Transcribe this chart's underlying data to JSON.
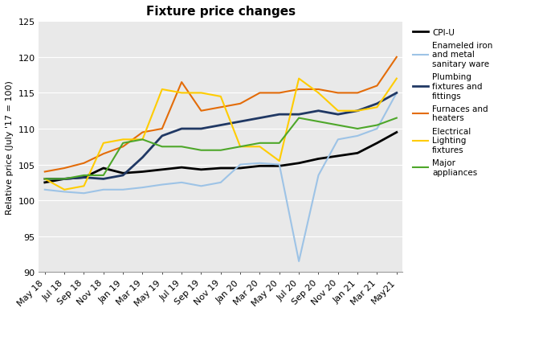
{
  "title": "Fixture price changes",
  "ylabel": "Relative price (July '17 = 100)",
  "ylim": [
    90,
    125
  ],
  "yticks": [
    90,
    95,
    100,
    105,
    110,
    115,
    120,
    125
  ],
  "x_labels": [
    "May 18",
    "Jul 18",
    "Sep 18",
    "Nov 18",
    "Jan 19",
    "Mar 19",
    "May 19",
    "Jul 19",
    "Sep 19",
    "Nov 19",
    "Jan 20",
    "Mar 20",
    "May 20",
    "Jul 20",
    "Sep 20",
    "Nov 20",
    "Jan 21",
    "Mar 21",
    "May21"
  ],
  "series": {
    "CPI-U": {
      "color": "#000000",
      "linewidth": 2.0,
      "values": [
        102.5,
        103.0,
        103.2,
        104.5,
        103.8,
        104.0,
        104.3,
        104.6,
        104.3,
        104.5,
        104.5,
        104.8,
        104.8,
        105.2,
        105.8,
        106.2,
        106.6,
        108.0,
        109.5
      ]
    },
    "Enameled iron and metal\nsanitary ware": {
      "color": "#9DC3E6",
      "linewidth": 1.5,
      "values": [
        101.5,
        101.2,
        101.0,
        101.5,
        101.5,
        101.8,
        102.2,
        102.5,
        102.0,
        102.5,
        105.0,
        105.2,
        105.0,
        91.5,
        103.5,
        108.5,
        109.0,
        110.0,
        115.0
      ]
    },
    "Plumbing fixtures and fittings": {
      "color": "#203864",
      "linewidth": 2.0,
      "values": [
        103.0,
        103.0,
        103.2,
        103.0,
        103.5,
        106.0,
        109.0,
        110.0,
        110.0,
        110.5,
        111.0,
        111.5,
        112.0,
        112.0,
        112.5,
        112.0,
        112.5,
        113.5,
        115.0
      ]
    },
    "Furnaces and heaters": {
      "color": "#E36C09",
      "linewidth": 1.5,
      "values": [
        104.0,
        104.5,
        105.2,
        106.5,
        107.5,
        109.5,
        110.0,
        116.5,
        112.5,
        113.0,
        113.5,
        115.0,
        115.0,
        115.5,
        115.5,
        115.0,
        115.0,
        116.0,
        120.0
      ]
    },
    "Electrical\nLighting\nfixtures": {
      "color": "#FFCC00",
      "linewidth": 1.5,
      "values": [
        103.0,
        101.5,
        102.0,
        108.0,
        108.5,
        108.5,
        115.5,
        115.0,
        115.0,
        114.5,
        107.5,
        107.5,
        105.5,
        117.0,
        115.0,
        112.5,
        112.5,
        113.0,
        117.0
      ]
    },
    "Major\nappliances": {
      "color": "#4EA72A",
      "linewidth": 1.5,
      "values": [
        103.0,
        103.0,
        103.5,
        103.5,
        108.0,
        108.5,
        107.5,
        107.5,
        107.0,
        107.0,
        107.5,
        108.0,
        108.0,
        111.5,
        111.0,
        110.5,
        110.0,
        110.5,
        111.5
      ]
    }
  },
  "legend_order": [
    "CPI-U",
    "Enameled iron and metal\nsanitary ware",
    "Plumbing fixtures and fittings",
    "Furnaces and heaters",
    "Electrical\nLighting\nfixtures",
    "Major\nappliances"
  ],
  "legend_labels": [
    "CPI-U",
    "Enameled iron\nand metal\nsanitary ware",
    "Plumbing\nfixtures and\nfittings",
    "Furnaces and\nheaters",
    "Electrical\nLighting\nfixtures",
    "Major\nappliances"
  ],
  "background_color": "#E9E9E9",
  "title_fontsize": 11,
  "axis_fontsize": 8,
  "tick_fontsize": 8
}
